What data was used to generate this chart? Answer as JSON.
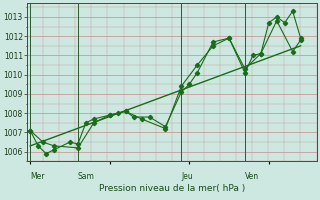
{
  "bg_color": "#cce8e0",
  "line_color": "#1a6b1a",
  "title": "Pression niveau de la mer( hPa )",
  "ylim": [
    1005.5,
    1013.7
  ],
  "yticks": [
    1006,
    1007,
    1008,
    1009,
    1010,
    1011,
    1012,
    1013
  ],
  "day_labels": [
    "Mer",
    "Sam",
    "Jeu",
    "Ven"
  ],
  "day_positions": [
    0.0,
    3.0,
    9.5,
    13.5
  ],
  "vline_positions": [
    0.0,
    3.0,
    9.5,
    13.5
  ],
  "xlim": [
    -0.2,
    18.0
  ],
  "num_vgrid": 19,
  "series1_x": [
    0.0,
    0.5,
    1.0,
    1.5,
    2.5,
    3.0,
    3.5,
    4.0,
    5.0,
    5.5,
    6.0,
    6.5,
    7.5,
    8.5,
    9.5,
    10.0,
    10.5,
    11.5,
    12.5,
    13.5,
    14.0,
    14.5,
    15.0,
    15.5,
    16.0,
    16.5,
    17.0
  ],
  "series1_y": [
    1007.1,
    1006.3,
    1005.9,
    1006.1,
    1006.5,
    1006.4,
    1007.5,
    1007.7,
    1007.9,
    1008.0,
    1008.1,
    1007.8,
    1007.8,
    1007.3,
    1009.1,
    1009.5,
    1010.1,
    1011.7,
    1011.9,
    1010.1,
    1011.0,
    1011.1,
    1012.7,
    1013.0,
    1012.7,
    1013.3,
    1011.9
  ],
  "series2_x": [
    0.0,
    0.8,
    1.5,
    3.0,
    4.0,
    5.0,
    6.0,
    7.0,
    8.5,
    9.5,
    10.5,
    11.5,
    12.5,
    13.5,
    14.5,
    15.5,
    16.5,
    17.0
  ],
  "series2_y": [
    1007.1,
    1006.5,
    1006.3,
    1006.2,
    1007.5,
    1007.9,
    1008.1,
    1007.7,
    1007.2,
    1009.4,
    1010.5,
    1011.5,
    1011.9,
    1010.3,
    1011.1,
    1012.8,
    1011.2,
    1011.8
  ],
  "trend_x": [
    0.0,
    17.0
  ],
  "trend_y": [
    1006.3,
    1011.5
  ]
}
